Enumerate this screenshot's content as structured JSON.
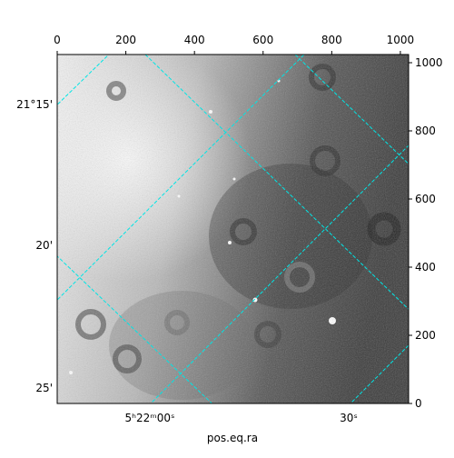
{
  "chart_data": {
    "type": "image",
    "xlabel": "pos.eq.ra",
    "xlim": [
      0,
      1024
    ],
    "xticks": [
      0,
      200,
      400,
      600,
      800,
      1000
    ],
    "ylim": [
      0,
      1024
    ],
    "yticks": [
      0,
      200,
      400,
      600,
      800,
      1000
    ],
    "ra_tick_labels": [
      "5ʰ22ᵐ00ˢ",
      "30ˢ"
    ],
    "dec_tick_labels": [
      "21°15'",
      "20'",
      "25'"
    ],
    "grid_color": "#00e5e5"
  }
}
